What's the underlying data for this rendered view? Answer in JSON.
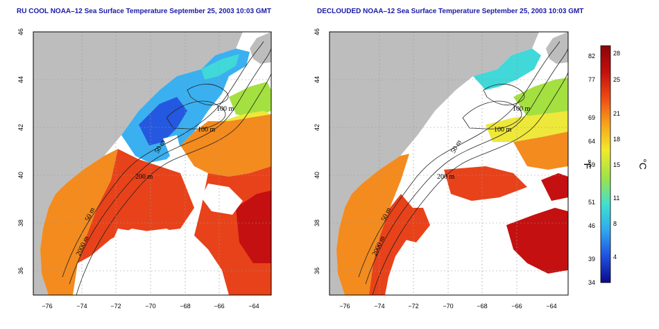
{
  "titles": {
    "left": "RU COOL NOAA–12 Sea Surface Temperature September 25, 2003 10:03 GMT",
    "right": "DECLOUDED NOAA–12 Sea Surface Temperature September 25, 2003 10:03 GMT"
  },
  "axes": {
    "x_ticks": [
      "−76",
      "−74",
      "−72",
      "−70",
      "−68",
      "−66",
      "−64"
    ],
    "y_ticks": [
      "46",
      "44",
      "42",
      "40",
      "38",
      "36"
    ]
  },
  "depth_labels": {
    "left": [
      "100 m",
      "100 m",
      "50 m",
      "200 m",
      "50 m",
      "2000 m"
    ],
    "right": [
      "100 m",
      "100 m",
      "50 m",
      "200 m",
      "50 m",
      "2000 m"
    ]
  },
  "colorbar": {
    "fahrenheit_ticks": [
      "82",
      "77",
      "69",
      "64",
      "59",
      "51",
      "46",
      "39",
      "34"
    ],
    "celsius_ticks": [
      "28",
      "25",
      "21",
      "18",
      "15",
      "11",
      "8",
      "4"
    ],
    "unit_f": "°F",
    "unit_c": "°C",
    "colors": [
      "#0a0a8c",
      "#1f4fe0",
      "#2fa8f0",
      "#40e0d0",
      "#9be34a",
      "#f3e92a",
      "#f7a21b",
      "#ee4a14",
      "#c40e0e",
      "#8a0606"
    ]
  },
  "map_colors": {
    "land": "#bdbdbd",
    "cloud": "#ffffff",
    "warm": "#e8421a",
    "hot": "#c41010",
    "orange": "#f38b1f",
    "cool": "#3ab0f0",
    "blue": "#2558e0",
    "cyan": "#40d8d8",
    "green": "#a4e040",
    "yellow": "#eee83a"
  }
}
